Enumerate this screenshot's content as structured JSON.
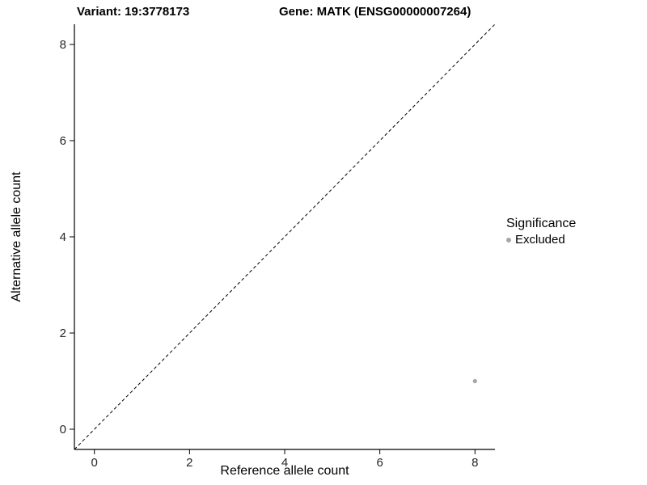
{
  "chart_data": {
    "type": "scatter",
    "title_left": "Variant: 19:3778173",
    "title_right": "Gene: MATK (ENSG00000007264)",
    "xlabel": "Reference allele count",
    "ylabel": "Alternative allele count",
    "xlim": [
      -0.42,
      8.42
    ],
    "ylim": [
      -0.42,
      8.42
    ],
    "xticks": [
      0,
      2,
      4,
      6,
      8
    ],
    "yticks": [
      0,
      2,
      4,
      6,
      8
    ],
    "grid": false,
    "identity_line": {
      "slope": 1,
      "intercept": 0,
      "style": "dashed",
      "color": "#000000"
    },
    "points": [
      {
        "x": 8,
        "y": 1,
        "series": "Excluded"
      }
    ],
    "series_colors": {
      "Excluded": "#a6a6a6"
    },
    "legend": {
      "title": "Significance",
      "position": "right",
      "entries": [
        {
          "label": "Excluded",
          "color": "#a6a6a6"
        }
      ]
    }
  }
}
